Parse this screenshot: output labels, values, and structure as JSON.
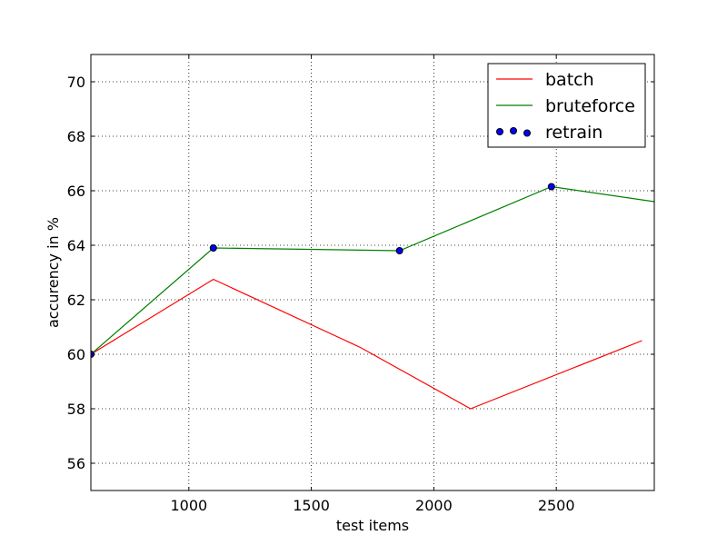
{
  "chart_data": {
    "type": "line",
    "title": "",
    "xlabel": "test items",
    "ylabel": "accurency in %",
    "xlim": [
      600,
      2900
    ],
    "ylim": [
      55,
      71
    ],
    "x_ticks": [
      1000,
      1500,
      2000,
      2500
    ],
    "y_ticks": [
      56,
      58,
      60,
      62,
      64,
      66,
      68,
      70
    ],
    "grid": true,
    "legend_position": "top-right",
    "series": [
      {
        "name": "batch",
        "kind": "line",
        "color": "#ff0000",
        "points": [
          [
            600,
            60.0
          ],
          [
            1100,
            62.75
          ],
          [
            1700,
            60.25
          ],
          [
            2150,
            58.0
          ],
          [
            2850,
            60.5
          ]
        ]
      },
      {
        "name": "bruteforce",
        "kind": "line",
        "color": "#008000",
        "points": [
          [
            600,
            60.0
          ],
          [
            1100,
            63.9
          ],
          [
            1860,
            63.8
          ],
          [
            2480,
            66.15
          ],
          [
            2900,
            65.6
          ]
        ]
      },
      {
        "name": "retrain",
        "kind": "scatter",
        "color": "#0000ff",
        "points": [
          [
            600,
            60.0
          ],
          [
            1100,
            63.9
          ],
          [
            1860,
            63.8
          ],
          [
            2480,
            66.15
          ]
        ]
      }
    ]
  }
}
